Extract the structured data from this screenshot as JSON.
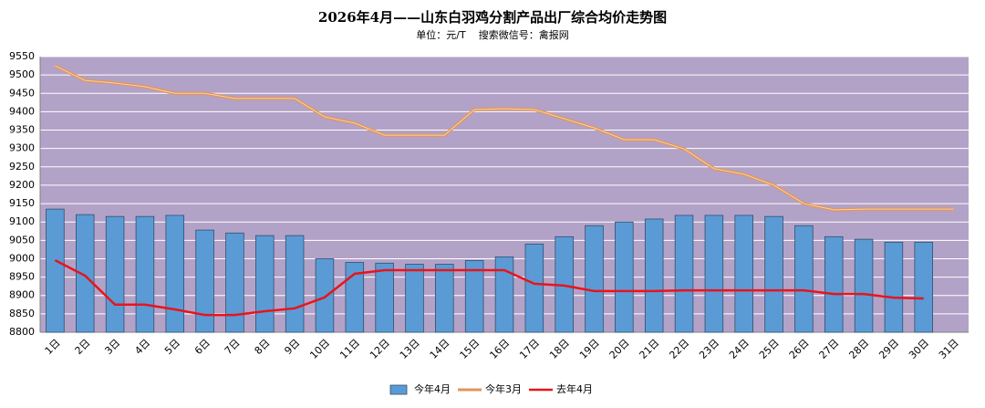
{
  "chart_data": {
    "type": "bar_line",
    "title": "2026年4月——山东白羽鸡分割产品出厂综合均价走势图",
    "subtitle": "单位：元/T    搜索微信号：禽报网",
    "categories": [
      "1日",
      "2日",
      "3日",
      "4日",
      "5日",
      "6日",
      "7日",
      "8日",
      "9日",
      "10日",
      "11日",
      "12日",
      "13日",
      "14日",
      "15日",
      "16日",
      "17日",
      "18日",
      "19日",
      "20日",
      "21日",
      "22日",
      "23日",
      "24日",
      "25日",
      "26日",
      "27日",
      "28日",
      "29日",
      "30日",
      "31日"
    ],
    "series": [
      {
        "name": "今年4月",
        "type": "bar",
        "color": "#5b9bd5",
        "values": [
          9135,
          9120,
          9115,
          9115,
          9118,
          9078,
          9070,
          9063,
          9063,
          9000,
          8990,
          8988,
          8985,
          8985,
          8995,
          9005,
          9040,
          9060,
          9090,
          9100,
          9108,
          9118,
          9118,
          9118,
          9115,
          9090,
          9060,
          9053,
          9045,
          9045,
          null
        ]
      },
      {
        "name": "今年3月",
        "type": "line",
        "color": "#e0955a",
        "values": [
          9525,
          9485,
          9478,
          9468,
          9450,
          9450,
          9436,
          9436,
          9436,
          9386,
          9369,
          9336,
          9336,
          9336,
          9406,
          9408,
          9406,
          9381,
          9356,
          9324,
          9324,
          9299,
          9245,
          9230,
          9200,
          9150,
          9133,
          9135,
          9135,
          9135,
          9135
        ]
      },
      {
        "name": "去年4月",
        "type": "line",
        "color": "#e8141c",
        "values": [
          8996,
          8954,
          8875,
          8875,
          8862,
          8847,
          8847,
          8857,
          8865,
          8895,
          8959,
          8969,
          8969,
          8969,
          8969,
          8969,
          8932,
          8927,
          8912,
          8912,
          8912,
          8914,
          8914,
          8914,
          8914,
          8914,
          8904,
          8904,
          8894,
          8892,
          null
        ]
      }
    ],
    "ylim": [
      8800,
      9550
    ],
    "yticks": [
      8800,
      8850,
      8900,
      8950,
      9000,
      9050,
      9100,
      9150,
      9200,
      9250,
      9300,
      9350,
      9400,
      9450,
      9500,
      9550
    ],
    "grid": true,
    "legend": "bottom"
  }
}
